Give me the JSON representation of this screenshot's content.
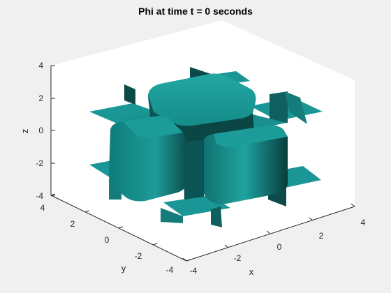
{
  "chart_data": {
    "type": "isosurface-3d",
    "title": "Phi at time t = 0 seconds",
    "xlabel": "x",
    "ylabel": "y",
    "zlabel": "z",
    "xlim": [
      -4,
      4
    ],
    "ylim": [
      -4,
      4
    ],
    "zlim": [
      -4,
      4
    ],
    "x_ticks": [
      "-4",
      "-2",
      "0",
      "2",
      "4"
    ],
    "y_ticks": [
      "4",
      "2",
      "0",
      "-2",
      "-4"
    ],
    "z_ticks": [
      "4",
      "2",
      "0",
      "-2",
      "-4"
    ],
    "grid": false,
    "surface_color": "#1a9696",
    "surface_shadow_color": "#0a4a48",
    "axes_background": "#ffffff",
    "figure_background": "#f0f0f0"
  }
}
